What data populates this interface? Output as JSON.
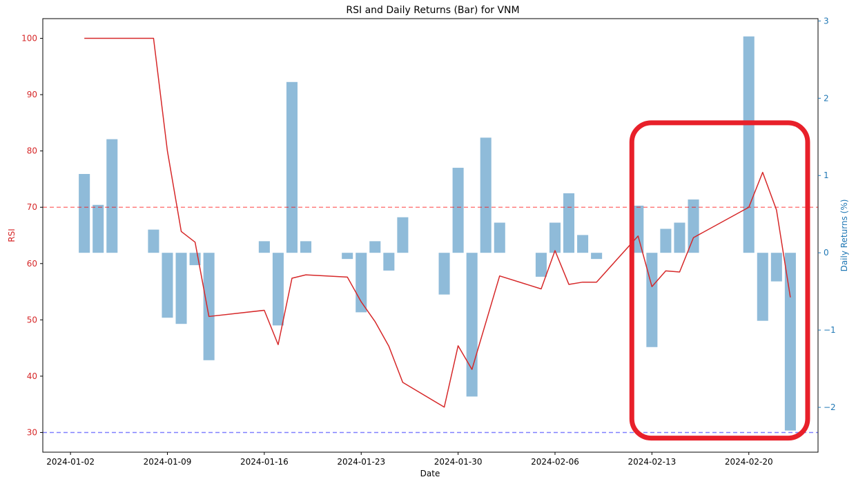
{
  "chart_data": {
    "type": "bar",
    "title": "RSI and Daily Returns (Bar) for VNM",
    "xlabel": "Date",
    "ylabel_left": "RSI",
    "ylabel_right": "Daily Returns (%)",
    "x_tick_labels": [
      "2024-01-02",
      "2024-01-09",
      "2024-01-16",
      "2024-01-23",
      "2024-01-30",
      "2024-02-06",
      "2024-02-13",
      "2024-02-20"
    ],
    "y_left_ticks": [
      30,
      40,
      50,
      60,
      70,
      80,
      90,
      100
    ],
    "y_right_ticks": [
      -2,
      -1,
      0,
      1,
      2,
      3
    ],
    "y_left_range": [
      26.5,
      103.5
    ],
    "y_right_range": [
      -2.58,
      3.03
    ],
    "x_range": [
      "2023-12-31",
      "2024-02-25"
    ],
    "grid": false,
    "rsi_color": "#d62728",
    "bar_color": "#1f77b4",
    "overbought": {
      "value": 70,
      "color": "#ff0000"
    },
    "oversold": {
      "value": 30,
      "color": "#0000ff"
    },
    "highlight_box": {
      "color": "#e8202a",
      "x_from": "2024-02-12",
      "x_to": "2024-02-24",
      "rsi_from": 29,
      "rsi_to": 85
    },
    "series": [
      {
        "kind": "bar",
        "axis": "right",
        "points": [
          {
            "x": "2024-01-03",
            "y": 1.02
          },
          {
            "x": "2024-01-04",
            "y": 0.62
          },
          {
            "x": "2024-01-05",
            "y": 1.47
          },
          {
            "x": "2024-01-08",
            "y": 0.3
          },
          {
            "x": "2024-01-09",
            "y": -0.84
          },
          {
            "x": "2024-01-10",
            "y": -0.92
          },
          {
            "x": "2024-01-11",
            "y": -0.16
          },
          {
            "x": "2024-01-12",
            "y": -1.39
          },
          {
            "x": "2024-01-16",
            "y": 0.15
          },
          {
            "x": "2024-01-17",
            "y": -0.94
          },
          {
            "x": "2024-01-18",
            "y": 2.21
          },
          {
            "x": "2024-01-19",
            "y": 0.15
          },
          {
            "x": "2024-01-22",
            "y": -0.08
          },
          {
            "x": "2024-01-23",
            "y": -0.77
          },
          {
            "x": "2024-01-24",
            "y": 0.15
          },
          {
            "x": "2024-01-25",
            "y": -0.23
          },
          {
            "x": "2024-01-26",
            "y": 0.46
          },
          {
            "x": "2024-01-29",
            "y": -0.54
          },
          {
            "x": "2024-01-30",
            "y": 1.1
          },
          {
            "x": "2024-01-31",
            "y": -1.86
          },
          {
            "x": "2024-02-01",
            "y": 1.49
          },
          {
            "x": "2024-02-02",
            "y": 0.39
          },
          {
            "x": "2024-02-05",
            "y": -0.31
          },
          {
            "x": "2024-02-06",
            "y": 0.39
          },
          {
            "x": "2024-02-07",
            "y": 0.77
          },
          {
            "x": "2024-02-08",
            "y": 0.23
          },
          {
            "x": "2024-02-09",
            "y": -0.08
          },
          {
            "x": "2024-02-12",
            "y": 0.61
          },
          {
            "x": "2024-02-13",
            "y": -1.22
          },
          {
            "x": "2024-02-14",
            "y": 0.31
          },
          {
            "x": "2024-02-15",
            "y": 0.39
          },
          {
            "x": "2024-02-16",
            "y": 0.69
          },
          {
            "x": "2024-02-20",
            "y": 2.8
          },
          {
            "x": "2024-02-21",
            "y": -0.88
          },
          {
            "x": "2024-02-22",
            "y": -0.37
          },
          {
            "x": "2024-02-23",
            "y": -2.3
          }
        ]
      },
      {
        "kind": "line",
        "axis": "left",
        "points": [
          {
            "x": "2024-01-03",
            "y": 100
          },
          {
            "x": "2024-01-08",
            "y": 100
          },
          {
            "x": "2024-01-09",
            "y": 80
          },
          {
            "x": "2024-01-10",
            "y": 65.7
          },
          {
            "x": "2024-01-11",
            "y": 63.8
          },
          {
            "x": "2024-01-12",
            "y": 50.6
          },
          {
            "x": "2024-01-16",
            "y": 51.7
          },
          {
            "x": "2024-01-17",
            "y": 45.6
          },
          {
            "x": "2024-01-18",
            "y": 57.4
          },
          {
            "x": "2024-01-19",
            "y": 58.0
          },
          {
            "x": "2024-01-22",
            "y": 57.6
          },
          {
            "x": "2024-01-23",
            "y": 53.2
          },
          {
            "x": "2024-01-24",
            "y": 49.7
          },
          {
            "x": "2024-01-25",
            "y": 45.3
          },
          {
            "x": "2024-01-26",
            "y": 38.9
          },
          {
            "x": "2024-01-29",
            "y": 34.5
          },
          {
            "x": "2024-01-30",
            "y": 45.4
          },
          {
            "x": "2024-01-31",
            "y": 41.2
          },
          {
            "x": "2024-02-02",
            "y": 57.8
          },
          {
            "x": "2024-02-05",
            "y": 55.5
          },
          {
            "x": "2024-02-06",
            "y": 62.3
          },
          {
            "x": "2024-02-07",
            "y": 56.3
          },
          {
            "x": "2024-02-08",
            "y": 56.7
          },
          {
            "x": "2024-02-09",
            "y": 56.7
          },
          {
            "x": "2024-02-12",
            "y": 64.9
          },
          {
            "x": "2024-02-13",
            "y": 55.9
          },
          {
            "x": "2024-02-14",
            "y": 58.7
          },
          {
            "x": "2024-02-15",
            "y": 58.5
          },
          {
            "x": "2024-02-16",
            "y": 64.6
          },
          {
            "x": "2024-02-20",
            "y": 70.0
          },
          {
            "x": "2024-02-21",
            "y": 76.2
          },
          {
            "x": "2024-02-22",
            "y": 69.5
          },
          {
            "x": "2024-02-23",
            "y": 54.0
          }
        ]
      }
    ]
  }
}
